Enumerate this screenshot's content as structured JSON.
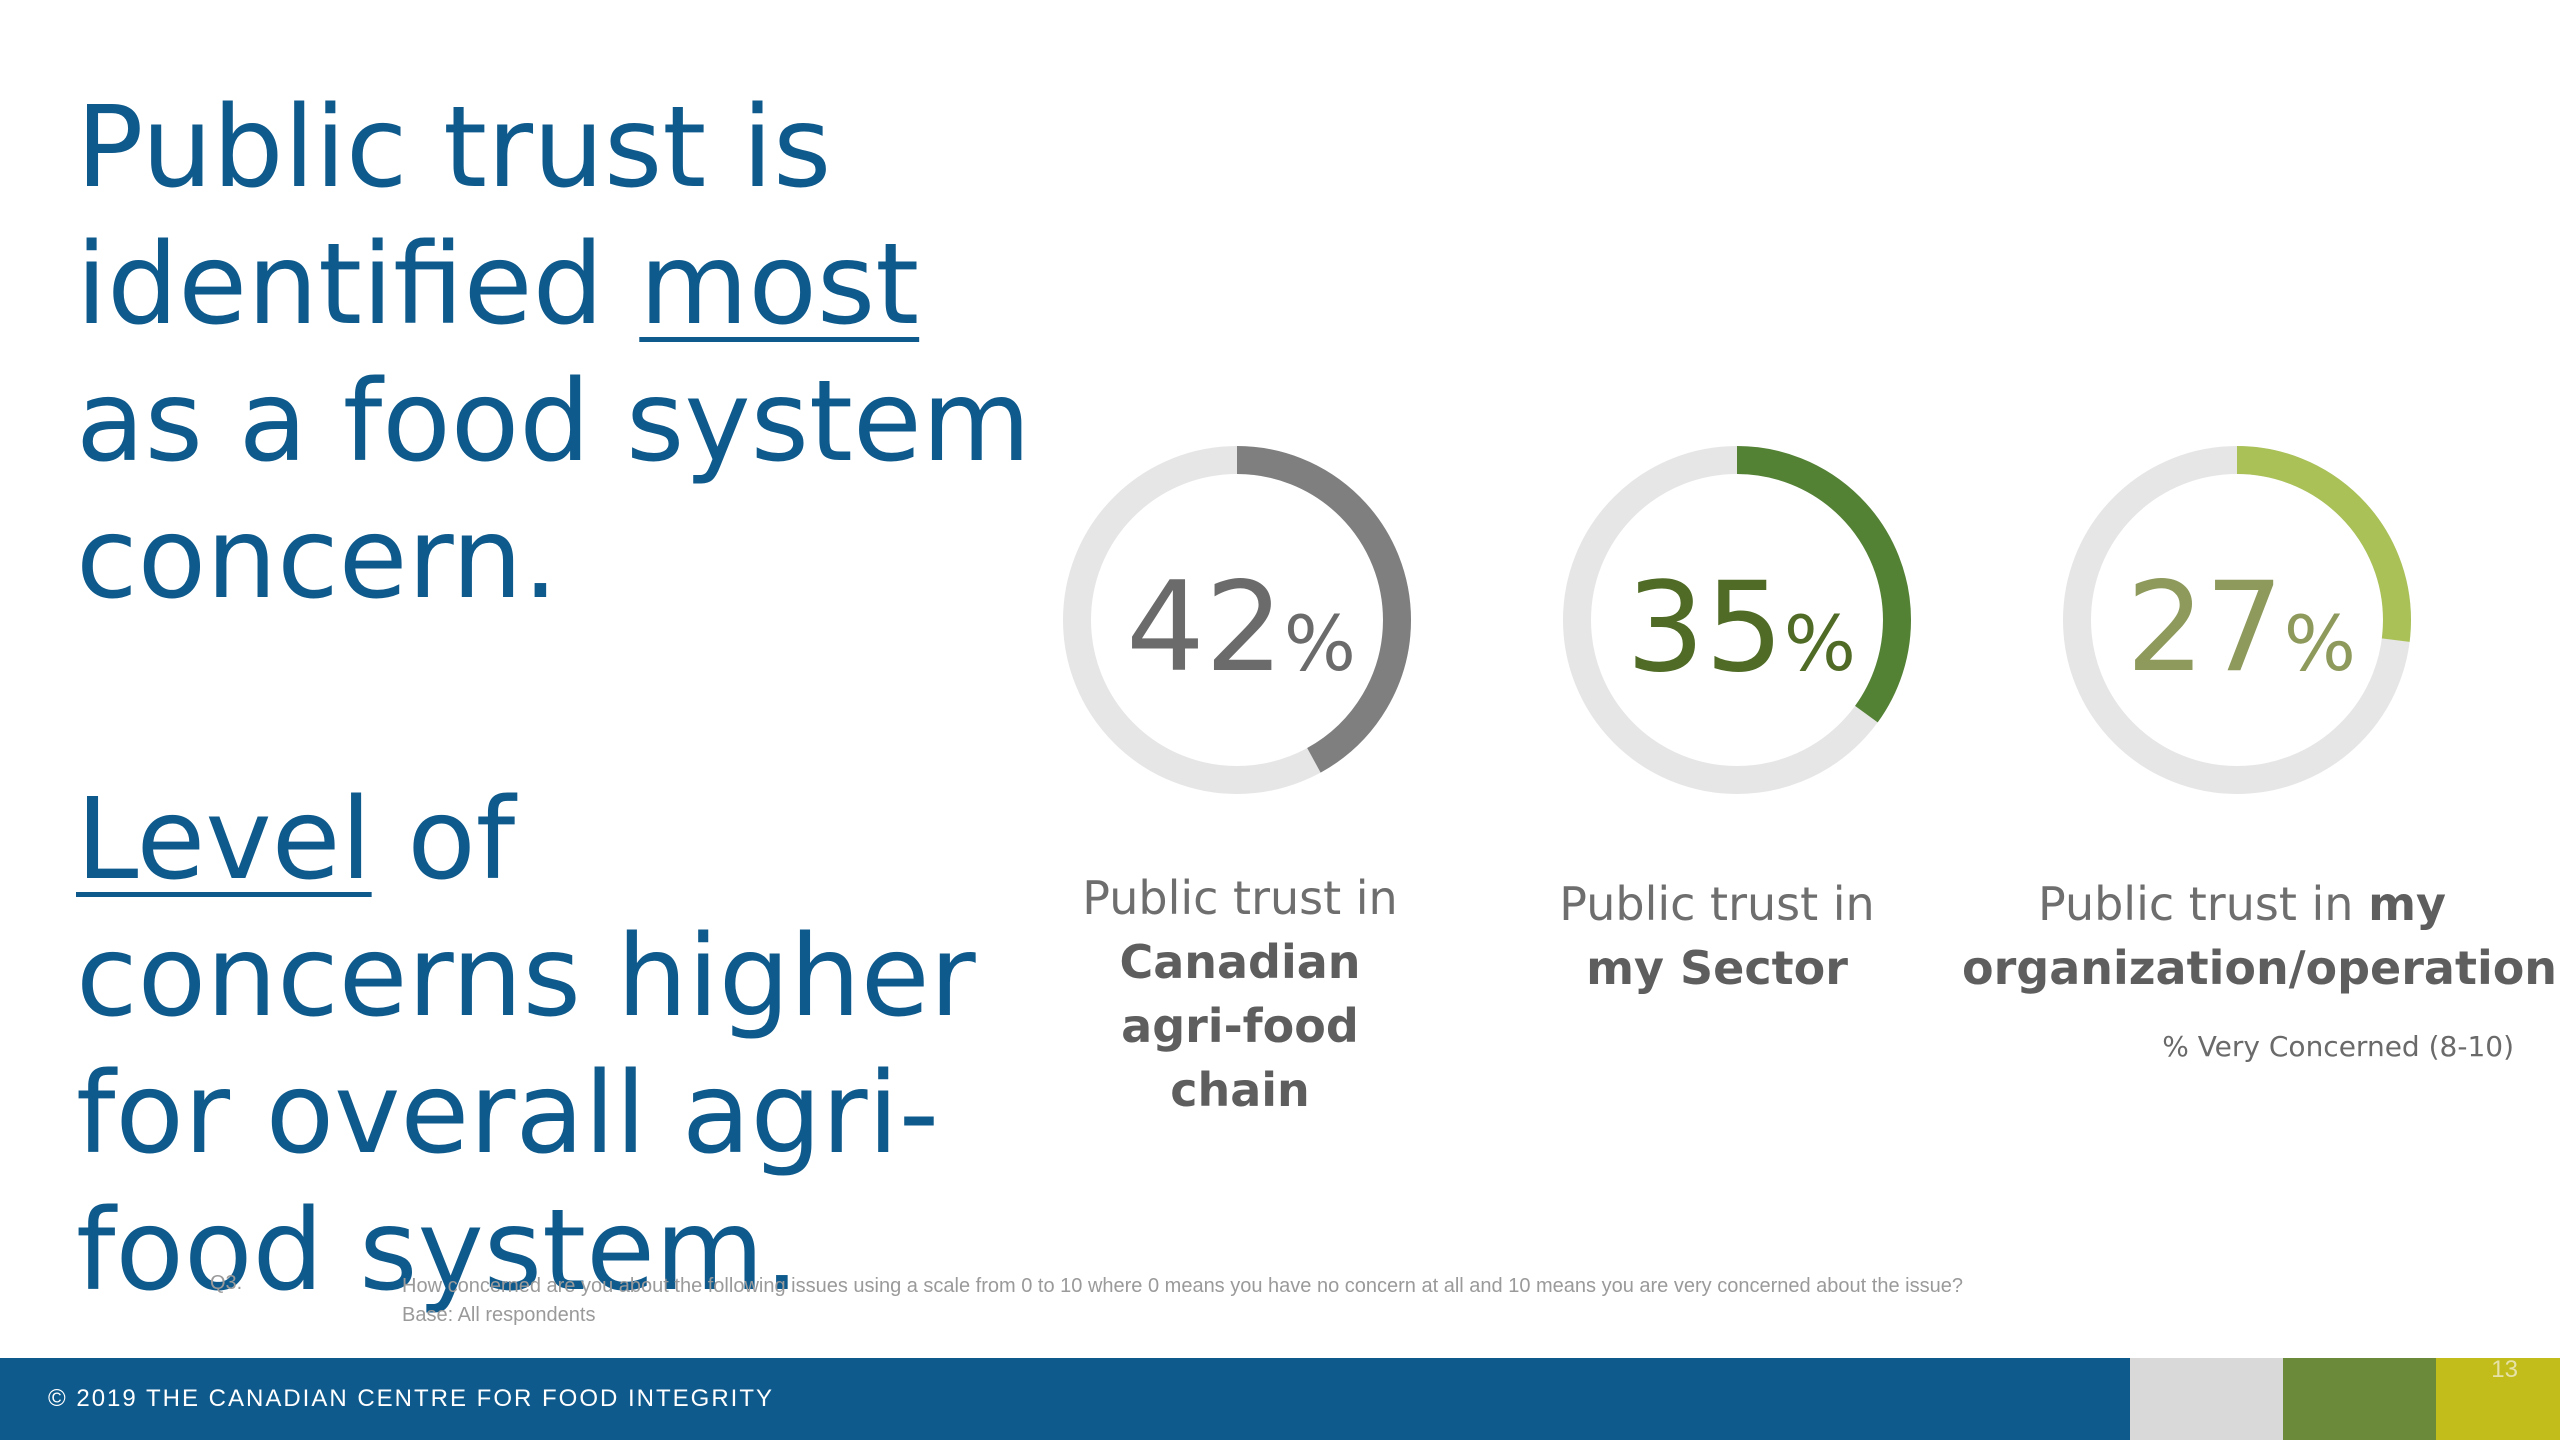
{
  "headline_1": {
    "pre": "Public trust is identified ",
    "underlined": "most",
    "post": " as a food system concern."
  },
  "headline_2": {
    "underlined": "Level",
    "post": " of concerns higher for overall agri-food system."
  },
  "chart_data": {
    "type": "pie",
    "title": "",
    "unit": "%",
    "measure_label": "% Very Concerned (8-10)",
    "track_color": "#e6e6e6",
    "items": [
      {
        "value": 42,
        "value_text": "42",
        "label_regular": "Public trust in",
        "label_bold": "Canadian agri-food chain",
        "color": "#7f7f7f",
        "text_color": "#6b6b6b"
      },
      {
        "value": 35,
        "value_text": "35",
        "label_regular": "Public trust in",
        "label_bold": "my Sector",
        "color": "#548235",
        "text_color": "#4f6b25"
      },
      {
        "value": 27,
        "value_text": "27",
        "label_regular": "Public trust in",
        "label_bold": "my organization/operation",
        "color": "#a9c157",
        "text_color": "#8d9a5c"
      }
    ]
  },
  "question": {
    "number": "Q3.",
    "text": "How concerned are you about the following issues using a scale from 0 to 10 where 0 means you have no concern at all and 10 means you are very concerned about the issue?",
    "base": "Base: All respondents"
  },
  "footer": {
    "copyright": "© 2019 THE CANADIAN CENTRE FOR FOOD INTEGRITY",
    "page_number": "13"
  }
}
